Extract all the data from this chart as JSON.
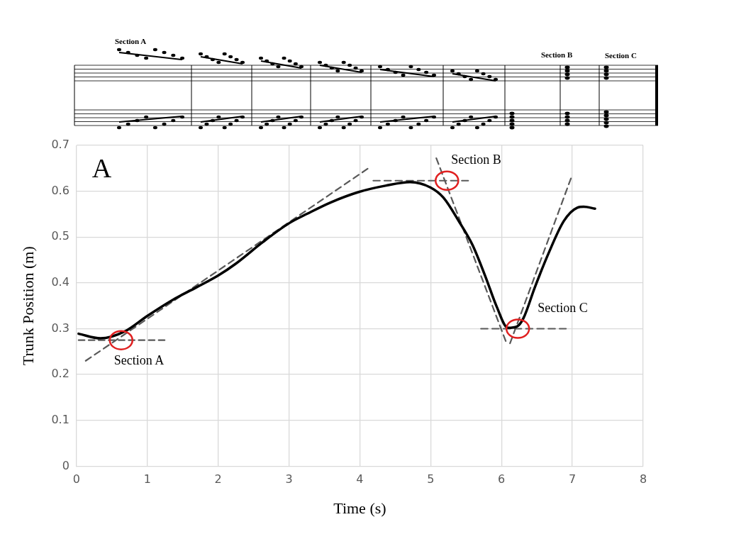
{
  "chart_data": {
    "type": "line",
    "xlabel": "Time (s)",
    "ylabel": "Trunk Position (m)",
    "xlim": [
      0,
      8
    ],
    "xticks": [
      0,
      1,
      2,
      3,
      4,
      5,
      6,
      7,
      8
    ],
    "ylim": [
      0,
      0.7
    ],
    "yticks": [
      0,
      0.1,
      0.2,
      0.3,
      0.4,
      0.5,
      0.6,
      0.7
    ],
    "grid": true,
    "marker": "none",
    "series": [
      {
        "color": "#000000",
        "line_style": "solid",
        "x": [
          0.03,
          0.34,
          0.68,
          1.0,
          1.37,
          1.69,
          2.0,
          2.25,
          2.63,
          3.0,
          3.26,
          3.58,
          4.0,
          4.36,
          4.71,
          5.0,
          5.18,
          5.4,
          5.59,
          5.78,
          5.93,
          6.09,
          6.22,
          6.31,
          6.47,
          6.66,
          6.88,
          7.07,
          7.16,
          7.32
        ],
        "values": [
          0.289,
          0.279,
          0.294,
          0.328,
          0.364,
          0.39,
          0.416,
          0.442,
          0.489,
          0.53,
          0.551,
          0.575,
          0.599,
          0.612,
          0.62,
          0.608,
          0.586,
          0.534,
          0.483,
          0.411,
          0.349,
          0.302,
          0.305,
          0.323,
          0.39,
          0.463,
          0.535,
          0.564,
          0.566,
          0.562
        ]
      },
      {
        "type": "line",
        "color": "#595959",
        "line_style": "dashed",
        "x": [
          0.03,
          1.25
        ],
        "values": [
          0.275,
          0.275
        ]
      },
      {
        "type": "line",
        "color": "#595959",
        "line_style": "dashed",
        "x": [
          0.13,
          4.11
        ],
        "values": [
          0.23,
          0.649
        ]
      },
      {
        "type": "line",
        "color": "#595959",
        "line_style": "dashed",
        "x": [
          4.19,
          5.53
        ],
        "values": [
          0.623,
          0.623
        ]
      },
      {
        "type": "line",
        "color": "#595959",
        "line_style": "dashed",
        "x": [
          5.08,
          6.06
        ],
        "values": [
          0.672,
          0.273
        ]
      },
      {
        "type": "line",
        "color": "#595959",
        "line_style": "dashed",
        "x": [
          5.71,
          6.91
        ],
        "values": [
          0.3,
          0.3
        ]
      },
      {
        "type": "line",
        "color": "#595959",
        "line_style": "dashed",
        "x": [
          6.12,
          6.98
        ],
        "values": [
          0.268,
          0.628
        ]
      }
    ],
    "annotations": [
      "A",
      {
        "text": "Section A",
        "x": 0.63,
        "y": 0.275
      },
      {
        "text": "Section B",
        "x": 5.23,
        "y": 0.623
      },
      {
        "text": "Section C",
        "x": 6.23,
        "y": 0.3
      },
      "Section A",
      "Section B",
      "Section C"
    ]
  }
}
